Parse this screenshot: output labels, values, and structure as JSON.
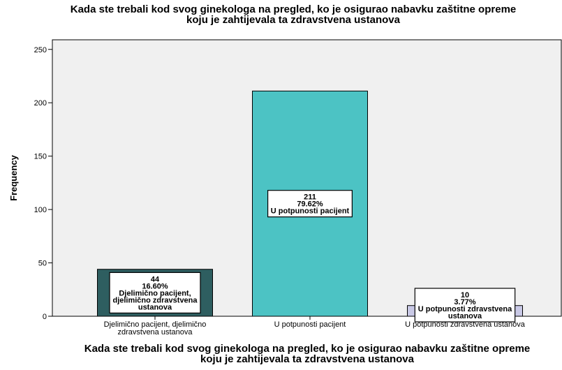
{
  "chart_data": {
    "type": "bar",
    "title": "Kada ste trebali kod svog ginekologa na pregled, ko je osigurao nabavku zaštitne opreme koju je zahtijevala ta zdravstvena ustanova",
    "x_label": "Kada ste trebali kod svog ginekologa na pregled, ko je osigurao nabavku zaštitne opreme koju je zahtijevala ta zdravstvena ustanova",
    "y_label": "Frequency",
    "categories": [
      "Djelimično pacijent, djelimično zdravstvena ustanova",
      "U potpunosti pacijent",
      "U potpunosti zdravstvena ustanova"
    ],
    "values": [
      44,
      211,
      10
    ],
    "percents": [
      16.6,
      79.62,
      3.77
    ],
    "percent_labels": [
      "16.60%",
      "79.62%",
      "3.77%"
    ],
    "colors": [
      "#2e5e60",
      "#4cc3c4",
      "#c9c9e6"
    ],
    "ylim": [
      0,
      259
    ],
    "yticks": [
      0,
      50,
      100,
      150,
      200,
      250
    ]
  }
}
